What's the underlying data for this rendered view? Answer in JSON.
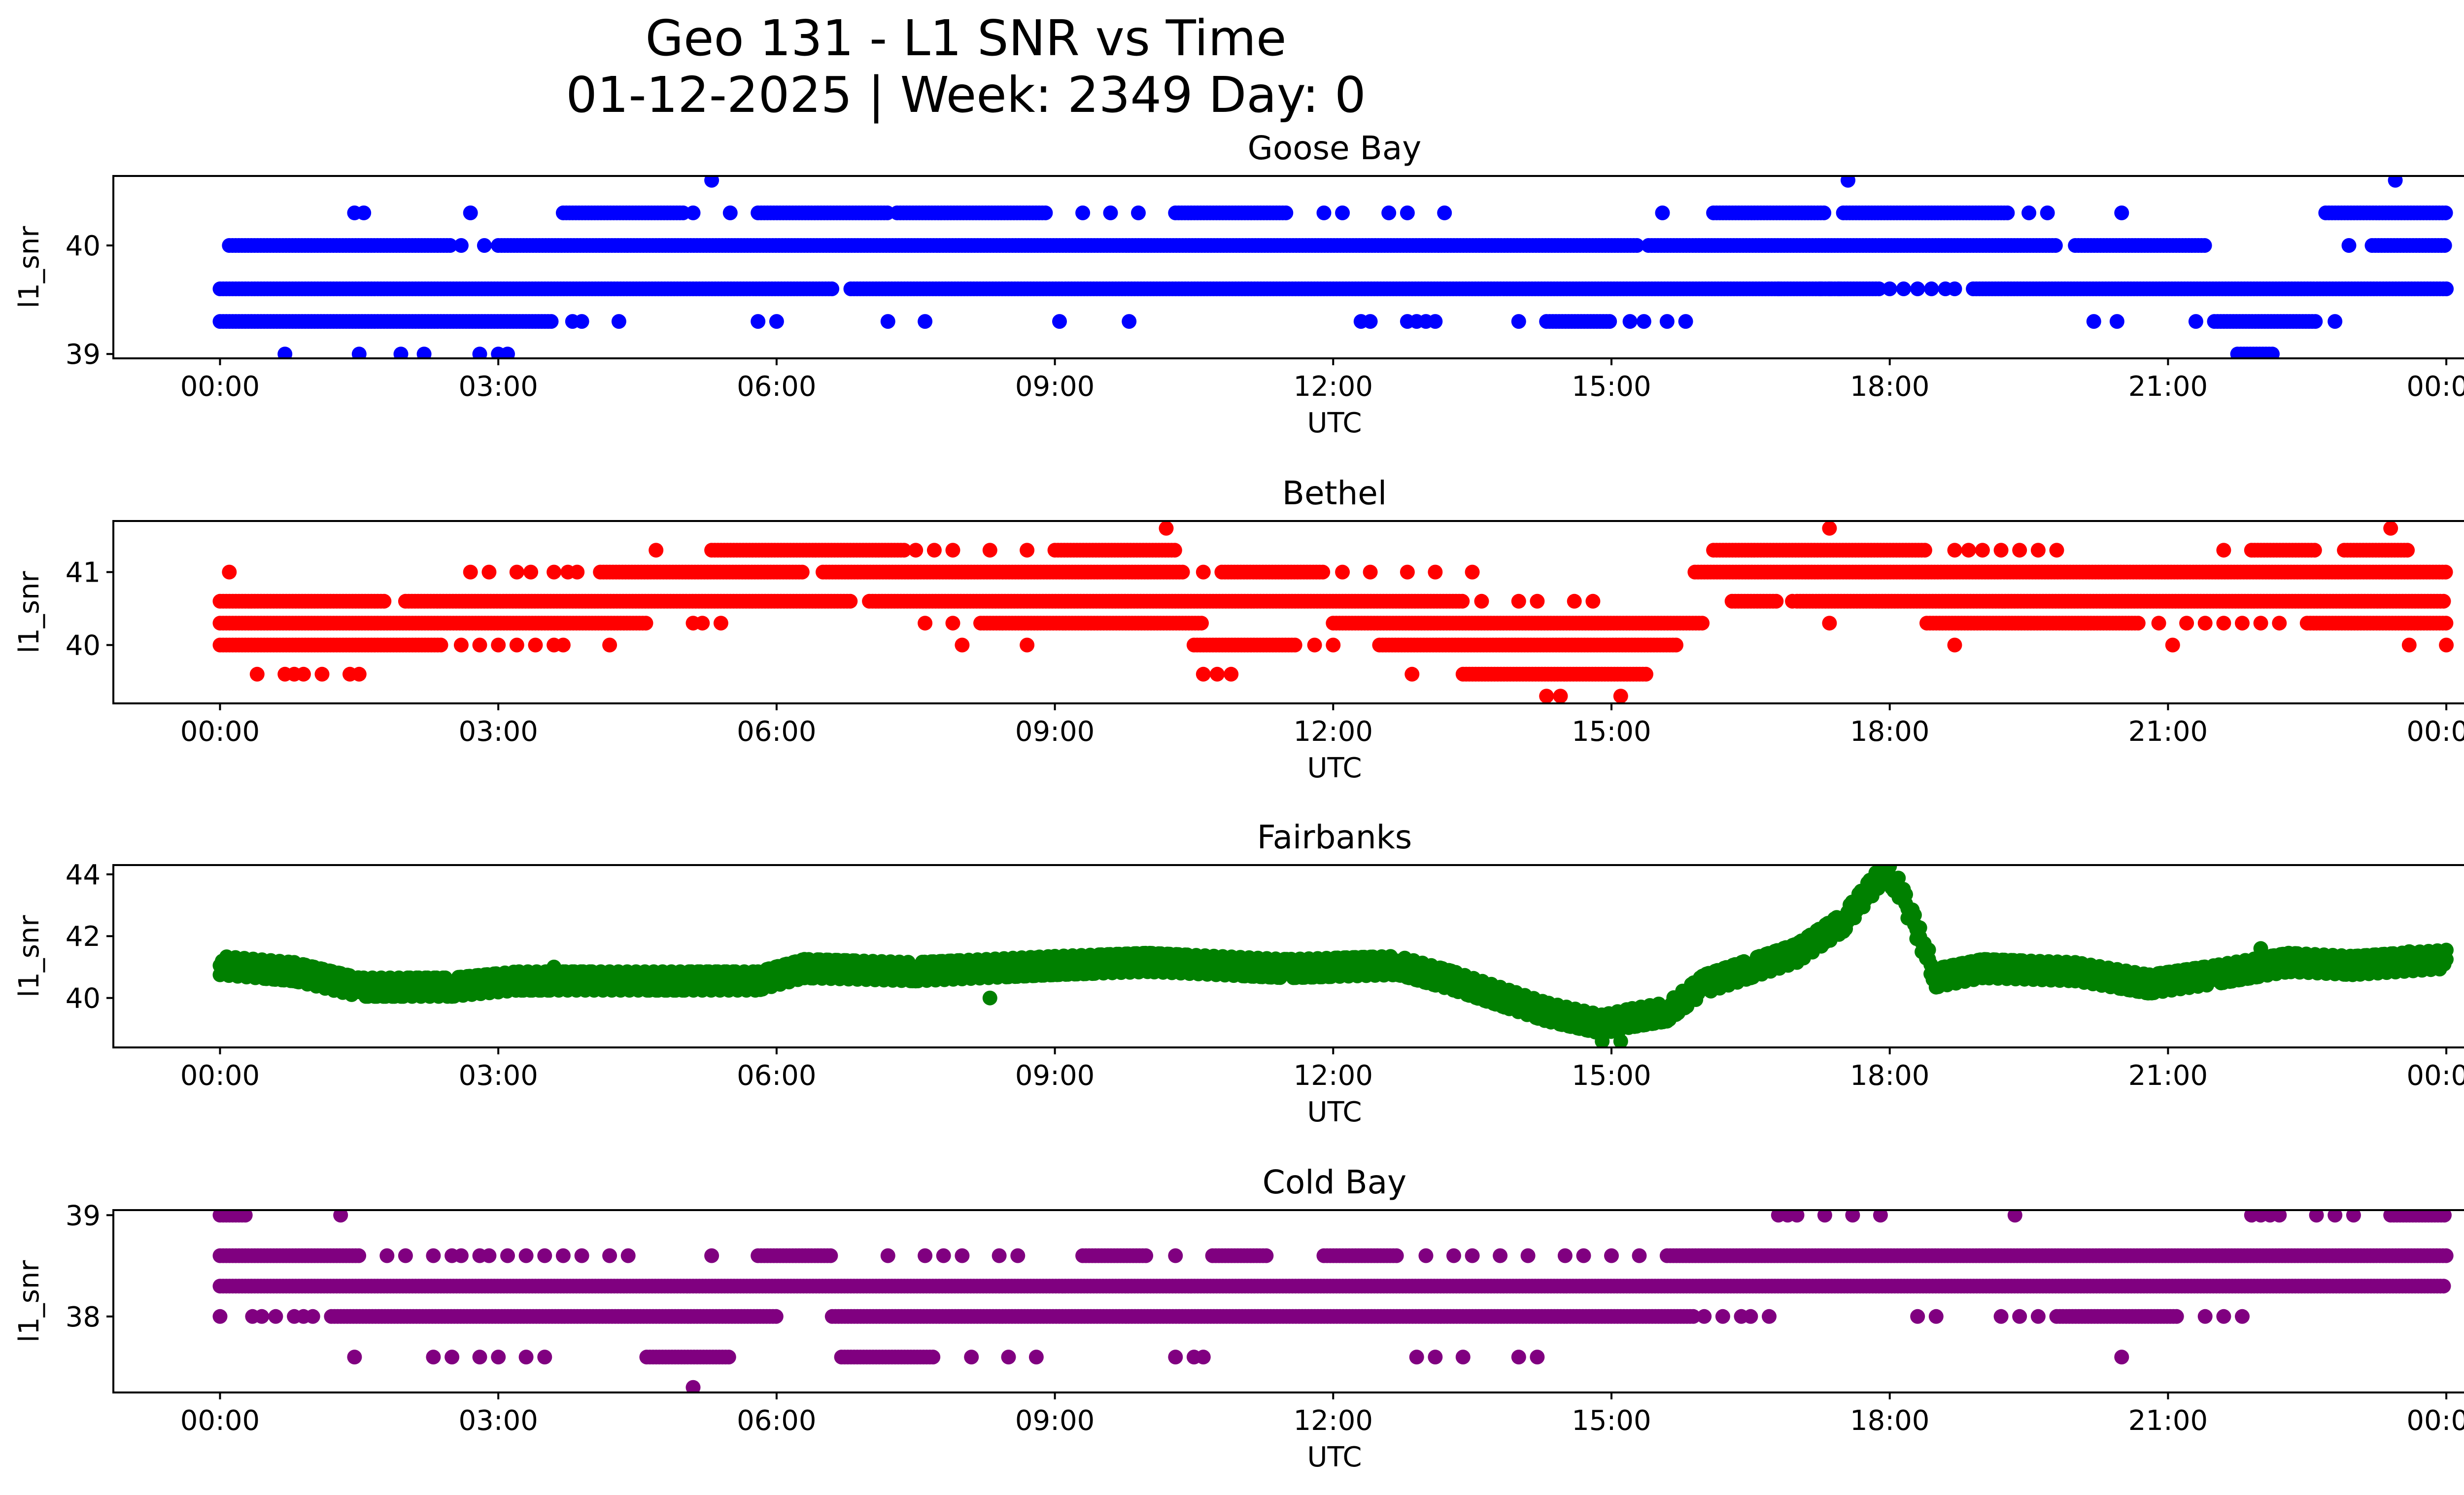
{
  "chart_data": {
    "type": "scatter",
    "title": "Geo 131 - L1 SNR vs Time",
    "subtitle": "01-12-2025 | Week: 2349 Day: 0",
    "x_tick_labels": [
      "00:00",
      "03:00",
      "06:00",
      "09:00",
      "12:00",
      "15:00",
      "18:00",
      "21:00",
      "00:00"
    ],
    "xlim_hours": [
      -1.15,
      25.2
    ],
    "panels": [
      {
        "title": "Goose Bay",
        "xlabel": "UTC",
        "ylabel": "l1_snr",
        "color": "#0000ff",
        "ylim": [
          38.96,
          40.64
        ],
        "yticks": [
          39,
          40
        ],
        "series": [
          {
            "level": 40.6,
            "spans": [],
            "points": [
              5.3,
              17.55,
              23.45
            ]
          },
          {
            "level": 40.3,
            "spans": [
              [
                3.7,
                5.0
              ],
              [
                5.8,
                7.2
              ],
              [
                7.3,
                8.9
              ],
              [
                10.3,
                11.5
              ],
              [
                16.1,
                17.3
              ],
              [
                17.5,
                19.3
              ],
              [
                22.7,
                24.0
              ]
            ],
            "points": [
              1.45,
              1.55,
              2.7,
              5.1,
              5.5,
              9.3,
              9.6,
              9.9,
              11.9,
              12.1,
              12.6,
              12.8,
              13.2,
              15.55,
              19.5,
              19.7,
              20.5
            ]
          },
          {
            "level": 40.0,
            "spans": [
              [
                0.1,
                2.5
              ],
              [
                3.0,
                15.3
              ],
              [
                15.4,
                19.8
              ],
              [
                20.0,
                21.4
              ],
              [
                23.2,
                24.0
              ]
            ],
            "points": [
              2.6,
              2.85,
              22.95
            ]
          },
          {
            "level": 39.6,
            "spans": [
              [
                0.0,
                6.6
              ],
              [
                6.8,
                17.9
              ],
              [
                18.9,
                24.0
              ]
            ],
            "points": [
              16.8,
              17.25,
              17.35,
              17.45,
              18.0,
              18.15,
              18.3,
              18.45,
              18.6,
              18.7
            ]
          },
          {
            "level": 39.3,
            "spans": [
              [
                0.0,
                3.6
              ],
              [
                14.3,
                15.0
              ],
              [
                21.5,
                22.6
              ]
            ],
            "points": [
              3.8,
              3.9,
              4.3,
              5.8,
              6.0,
              7.2,
              7.6,
              9.05,
              9.8,
              12.3,
              12.4,
              12.8,
              12.9,
              13.0,
              13.1,
              14.0,
              15.2,
              15.35,
              15.6,
              15.8,
              20.2,
              20.45,
              21.3,
              22.8
            ]
          },
          {
            "level": 39.0,
            "spans": [
              [
                21.75,
                22.15
              ]
            ],
            "points": [
              0.7,
              1.5,
              1.95,
              2.2,
              2.8,
              3.0,
              3.1
            ]
          }
        ]
      },
      {
        "title": "Bethel",
        "xlabel": "UTC",
        "ylabel": "l1_snr",
        "color": "#ff0000",
        "ylim": [
          39.2,
          41.7
        ],
        "yticks": [
          40,
          41
        ],
        "series": [
          {
            "level": 41.6,
            "spans": [],
            "points": [
              10.2,
              17.35,
              23.4
            ]
          },
          {
            "level": 41.3,
            "spans": [
              [
                5.3,
                7.4
              ],
              [
                9.0,
                10.3
              ],
              [
                16.1,
                18.4
              ],
              [
                21.9,
                22.6
              ],
              [
                22.9,
                23.6
              ]
            ],
            "points": [
              4.7,
              7.5,
              7.7,
              7.9,
              8.3,
              8.7,
              18.7,
              18.85,
              19.0,
              19.2,
              19.4,
              19.6,
              19.8,
              21.6
            ]
          },
          {
            "level": 41.0,
            "spans": [
              [
                4.1,
                6.3
              ],
              [
                6.5,
                10.4
              ],
              [
                10.8,
                11.9
              ],
              [
                15.9,
                24.0
              ]
            ],
            "points": [
              0.1,
              2.7,
              2.9,
              3.2,
              3.35,
              3.6,
              3.75,
              3.85,
              10.6,
              12.1,
              12.4,
              12.8,
              13.1,
              13.5
            ]
          },
          {
            "level": 40.6,
            "spans": [
              [
                0.0,
                1.8
              ],
              [
                2.0,
                6.8
              ],
              [
                7.0,
                13.4
              ],
              [
                16.3,
                16.8
              ],
              [
                17.0,
                24.0
              ]
            ],
            "points": [
              13.6,
              14.0,
              14.2,
              14.6,
              14.8,
              16.95
            ]
          },
          {
            "level": 40.3,
            "spans": [
              [
                0.0,
                4.6
              ],
              [
                8.2,
                10.6
              ],
              [
                12.0,
                16.0
              ],
              [
                18.4,
                20.7
              ],
              [
                22.5,
                24.0
              ]
            ],
            "points": [
              5.1,
              5.2,
              5.4,
              7.6,
              7.9,
              17.35,
              20.9,
              21.2,
              21.4,
              21.6,
              21.8,
              22.0,
              22.2
            ]
          },
          {
            "level": 40.0,
            "spans": [
              [
                0.0,
                2.4
              ],
              [
                10.5,
                11.6
              ],
              [
                12.5,
                15.7
              ]
            ],
            "points": [
              2.6,
              2.8,
              3.0,
              3.2,
              3.4,
              3.6,
              3.7,
              4.2,
              8.0,
              8.7,
              11.8,
              12.0,
              18.7,
              21.05,
              23.6,
              24.0
            ]
          },
          {
            "level": 39.6,
            "spans": [
              [
                13.4,
                15.4
              ]
            ],
            "points": [
              0.4,
              0.7,
              0.8,
              0.9,
              1.1,
              1.4,
              1.5,
              10.6,
              10.75,
              10.9,
              12.85
            ]
          },
          {
            "level": 39.3,
            "spans": [],
            "points": [
              14.3,
              14.45,
              15.1
            ]
          }
        ]
      },
      {
        "title": "Fairbanks",
        "xlabel": "UTC",
        "ylabel": "l1_snr",
        "color": "#008000",
        "ylim": [
          38.4,
          44.3
        ],
        "yticks": [
          40,
          42,
          44
        ],
        "trend": [
          [
            0.0,
            40.9
          ],
          [
            0.8,
            40.7
          ],
          [
            1.5,
            40.2
          ],
          [
            2.5,
            40.2
          ],
          [
            3.2,
            40.4
          ],
          [
            5.8,
            40.4
          ],
          [
            6.3,
            40.8
          ],
          [
            7.5,
            40.7
          ],
          [
            9.0,
            40.9
          ],
          [
            10.0,
            41.0
          ],
          [
            11.5,
            40.8
          ],
          [
            12.7,
            40.9
          ],
          [
            13.3,
            40.4
          ],
          [
            13.9,
            39.8
          ],
          [
            14.3,
            39.4
          ],
          [
            14.9,
            39.0
          ],
          [
            15.2,
            39.2
          ],
          [
            15.6,
            39.4
          ],
          [
            16.0,
            40.3
          ],
          [
            16.5,
            40.8
          ],
          [
            17.0,
            41.3
          ],
          [
            17.5,
            42.3
          ],
          [
            17.85,
            43.6
          ],
          [
            17.95,
            44.0
          ],
          [
            18.1,
            43.4
          ],
          [
            18.3,
            42.0
          ],
          [
            18.5,
            40.5
          ],
          [
            19.0,
            40.8
          ],
          [
            20.0,
            40.7
          ],
          [
            20.8,
            40.3
          ],
          [
            21.5,
            40.6
          ],
          [
            22.3,
            41.0
          ],
          [
            23.0,
            40.9
          ],
          [
            24.0,
            41.1
          ]
        ],
        "extra_points": [
          [
            3.6,
            41.0
          ],
          [
            8.3,
            40.0
          ],
          [
            8.8,
            41.3
          ],
          [
            12.6,
            41.3
          ],
          [
            14.9,
            38.6
          ],
          [
            15.1,
            38.6
          ],
          [
            17.3,
            41.8
          ],
          [
            22.0,
            41.6
          ],
          [
            23.6,
            41.5
          ]
        ]
      },
      {
        "title": "Cold Bay",
        "xlabel": "UTC",
        "ylabel": "l1_snr",
        "color": "#800080",
        "ylim": [
          37.25,
          39.05
        ],
        "yticks": [
          38,
          39
        ],
        "series": [
          {
            "level": 39.0,
            "spans": [
              [
                0.0,
                0.3
              ],
              [
                23.4,
                24.0
              ]
            ],
            "points": [
              1.3,
              16.8,
              16.9,
              17.0,
              17.3,
              17.6,
              17.9,
              19.35,
              21.9,
              22.0,
              22.1,
              22.2,
              22.6,
              22.8,
              23.0
            ]
          },
          {
            "level": 38.6,
            "spans": [
              [
                0.0,
                1.5
              ],
              [
                5.8,
                6.6
              ],
              [
                9.3,
                10.0
              ],
              [
                10.7,
                11.3
              ],
              [
                11.9,
                12.7
              ],
              [
                15.6,
                24.0
              ]
            ],
            "points": [
              1.8,
              2.0,
              2.3,
              2.5,
              2.6,
              2.8,
              2.9,
              3.1,
              3.3,
              3.5,
              3.7,
              3.9,
              4.2,
              4.4,
              5.3,
              7.2,
              7.6,
              7.8,
              8.0,
              8.4,
              8.6,
              10.3,
              13.0,
              13.3,
              13.5,
              13.8,
              14.1,
              14.5,
              14.7,
              15.0,
              15.3
            ]
          },
          {
            "level": 38.3,
            "spans": [
              [
                0.0,
                24.0
              ]
            ],
            "points": []
          },
          {
            "level": 38.0,
            "spans": [
              [
                1.2,
                6.0
              ],
              [
                6.6,
                15.9
              ],
              [
                19.8,
                21.1
              ]
            ],
            "points": [
              0.0,
              0.35,
              0.45,
              0.6,
              0.8,
              0.9,
              1.0,
              16.0,
              16.2,
              16.4,
              16.5,
              16.7,
              18.3,
              18.5,
              19.2,
              19.4,
              19.6,
              21.4,
              21.6,
              21.8
            ]
          },
          {
            "level": 37.6,
            "spans": [
              [
                4.6,
                5.5
              ],
              [
                6.7,
                7.7
              ]
            ],
            "points": [
              1.45,
              2.3,
              2.5,
              2.8,
              3.0,
              3.3,
              3.5,
              8.1,
              8.5,
              8.8,
              10.3,
              10.5,
              10.6,
              12.9,
              13.1,
              13.4,
              14.0,
              14.2,
              20.5
            ]
          },
          {
            "level": 37.3,
            "spans": [],
            "points": [
              5.1
            ]
          }
        ]
      }
    ]
  }
}
